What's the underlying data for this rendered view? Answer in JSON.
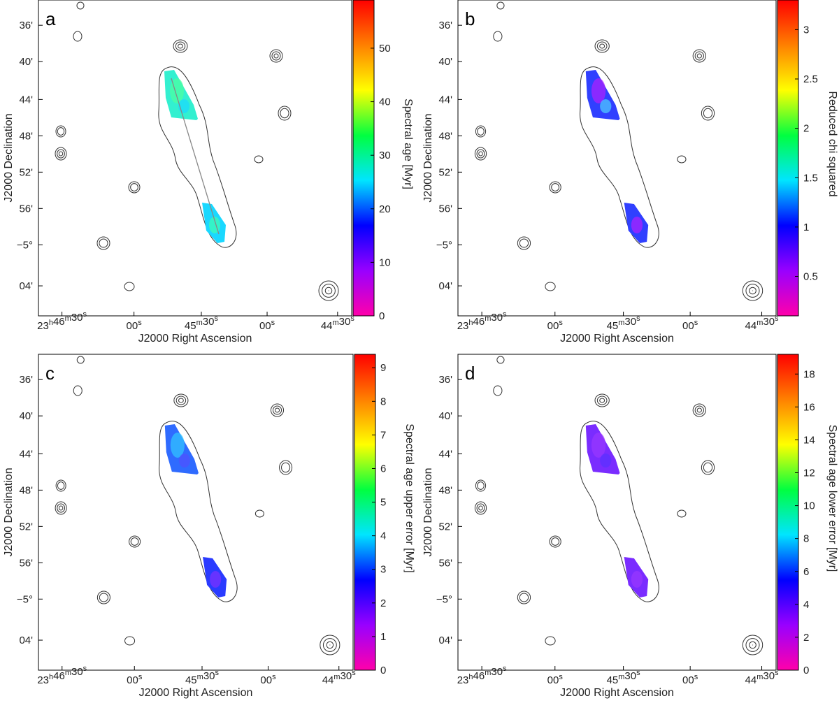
{
  "figure": {
    "panels": [
      {
        "id": "a",
        "letter": "a",
        "colorbar": {
          "label": "Spectral age [Myr]",
          "min": 0,
          "max": 59,
          "ticks": [
            "0",
            "10",
            "20",
            "30",
            "40",
            "50"
          ],
          "tick_values": [
            0,
            10,
            20,
            30,
            40,
            50
          ]
        },
        "pixel_map": {
          "lobe_north": "cyan-green",
          "lobe_south": "cyan-blue"
        }
      },
      {
        "id": "b",
        "letter": "b",
        "colorbar": {
          "label": "Reduced chi squared",
          "min": 0.1,
          "max": 3.3,
          "ticks": [
            "0.5",
            "1",
            "1.5",
            "2",
            "2.5",
            "3"
          ],
          "tick_values": [
            0.5,
            1,
            1.5,
            2,
            2.5,
            3
          ]
        },
        "pixel_map": {
          "lobe_north": "blue-magenta",
          "lobe_south": "blue-magenta"
        }
      },
      {
        "id": "c",
        "letter": "c",
        "colorbar": {
          "label": "Spectral age upper error [Myr]",
          "min": 0,
          "max": 9.4,
          "ticks": [
            "0",
            "1",
            "2",
            "3",
            "4",
            "5",
            "6",
            "7",
            "8",
            "9"
          ],
          "tick_values": [
            0,
            1,
            2,
            3,
            4,
            5,
            6,
            7,
            8,
            9
          ]
        },
        "pixel_map": {
          "lobe_north": "blue-cyan",
          "lobe_south": "blue-violet"
        }
      },
      {
        "id": "d",
        "letter": "d",
        "colorbar": {
          "label": "Spectral age lower error [Myr]",
          "min": 0,
          "max": 19.2,
          "ticks": [
            "0",
            "2",
            "4",
            "6",
            "8",
            "10",
            "12",
            "14",
            "16",
            "18"
          ],
          "tick_values": [
            0,
            2,
            4,
            6,
            8,
            10,
            12,
            14,
            16,
            18
          ]
        },
        "pixel_map": {
          "lobe_north": "violet",
          "lobe_south": "violet"
        }
      }
    ],
    "axes": {
      "xlabel": "J2000 Right Ascension",
      "ylabel": "J2000 Declination",
      "xticks": [
        {
          "h": "23",
          "hu": "h",
          "m": "46",
          "mu": "m",
          "s": "30",
          "su": "s"
        },
        {
          "s": "00",
          "su": "s"
        },
        {
          "m": "45",
          "mu": "m",
          "s": "30",
          "su": "s"
        },
        {
          "s": "00",
          "su": "s"
        },
        {
          "m": "44",
          "mu": "m",
          "s": "30",
          "su": "s"
        }
      ],
      "yticks": [
        "36'",
        "40'",
        "44'",
        "48'",
        "52'",
        "56'",
        "−5°",
        "04'"
      ]
    },
    "colors": {
      "contour": "#333333",
      "colormap": [
        "#ff00aa",
        "#9900ff",
        "#0000ff",
        "#00e5ff",
        "#00ff40",
        "#ffff00",
        "#ff8000",
        "#ff0000"
      ]
    }
  }
}
